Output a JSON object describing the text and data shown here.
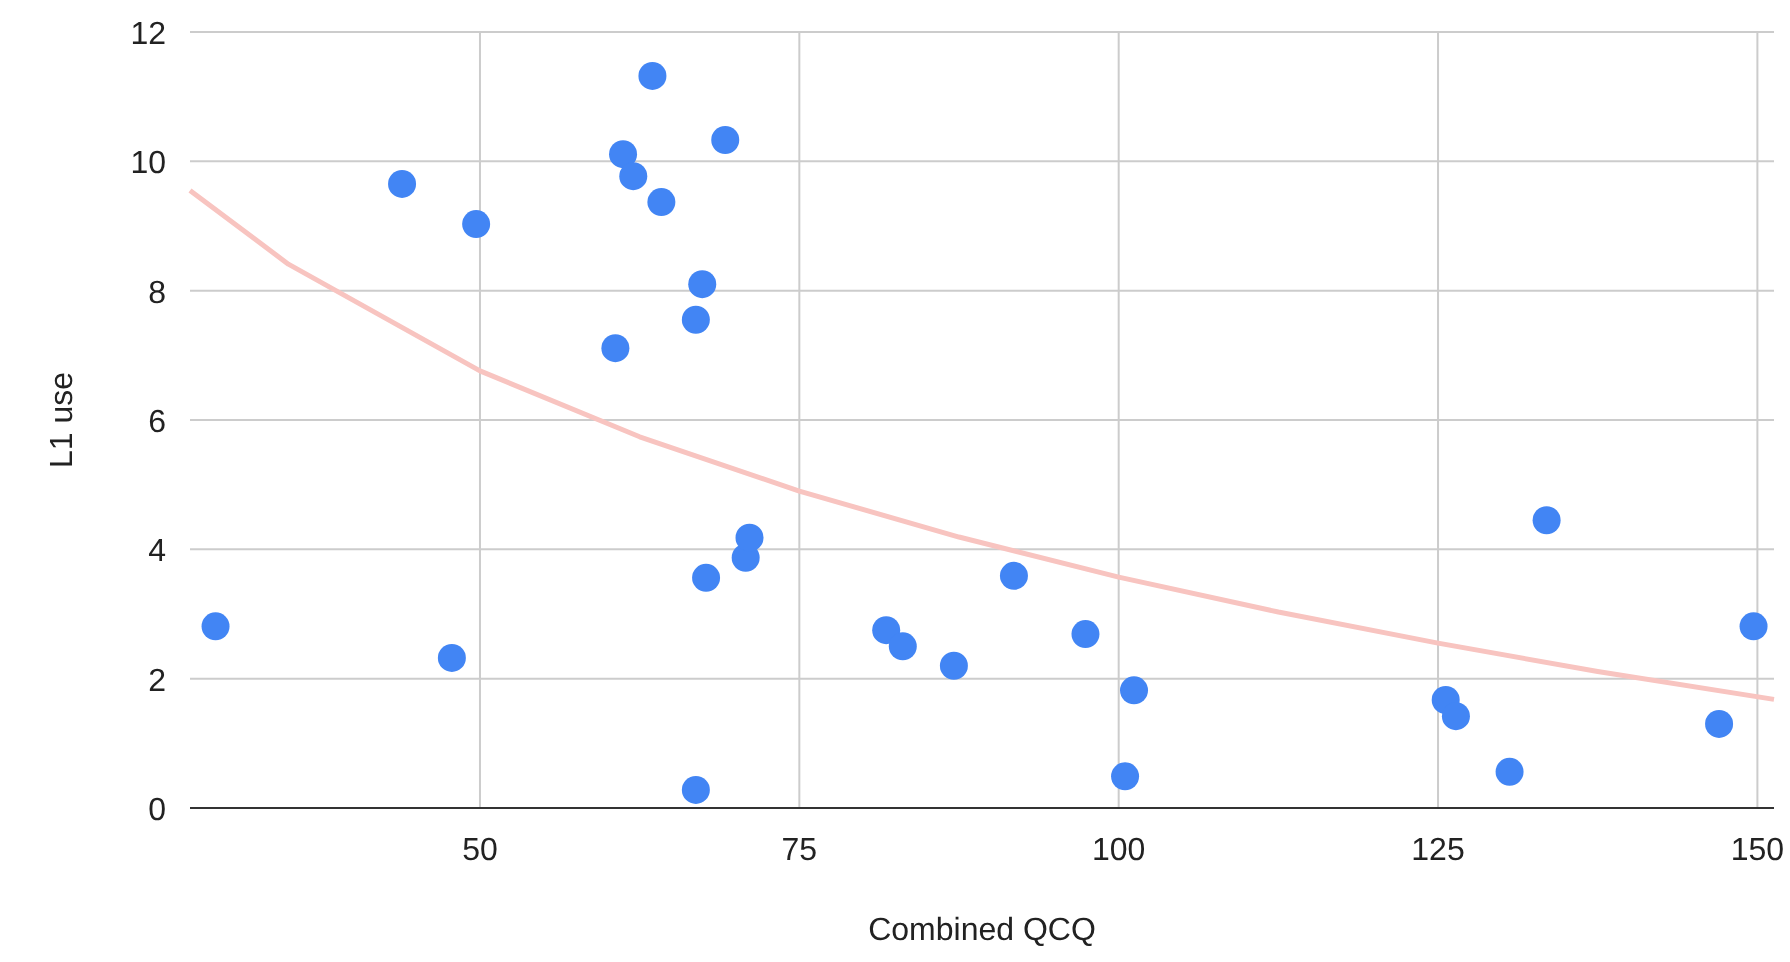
{
  "chart_data": {
    "type": "scatter",
    "xlabel": "Combined QCQ",
    "ylabel": "L1 use",
    "xlim": [
      27.3,
      151.3
    ],
    "xticks": [
      50,
      75,
      100,
      125,
      150
    ],
    "ylim": [
      0,
      12
    ],
    "yticks": [
      0,
      2,
      4,
      6,
      8,
      10,
      12
    ],
    "grid": true,
    "series": [
      {
        "marker": "circle",
        "color": "#4285f4",
        "x": [
          29.3,
          43.9,
          47.8,
          49.7,
          60.6,
          61.2,
          62.0,
          63.5,
          64.2,
          66.9,
          67.4,
          66.9,
          67.7,
          69.2,
          70.8,
          71.1,
          81.8,
          83.1,
          87.1,
          91.8,
          97.4,
          100.5,
          101.2,
          125.6,
          126.4,
          130.6,
          133.5,
          147.0,
          149.7
        ],
        "values": [
          2.81,
          9.65,
          2.32,
          9.03,
          7.11,
          10.11,
          9.77,
          11.32,
          9.37,
          7.55,
          8.1,
          0.28,
          3.56,
          10.33,
          3.87,
          4.18,
          2.75,
          2.5,
          2.2,
          3.59,
          2.69,
          0.49,
          1.82,
          1.67,
          1.42,
          0.56,
          4.45,
          1.3,
          2.81
        ]
      },
      {
        "type": "line",
        "marker": "none",
        "color": "#f8c4c0",
        "x": [
          27.3,
          35,
          50,
          62.5,
          75,
          87.5,
          100,
          112.5,
          125,
          137.5,
          151.3
        ],
        "values": [
          9.55,
          8.41,
          6.76,
          5.74,
          4.9,
          4.19,
          3.57,
          3.03,
          2.55,
          2.11,
          1.68
        ]
      }
    ]
  }
}
